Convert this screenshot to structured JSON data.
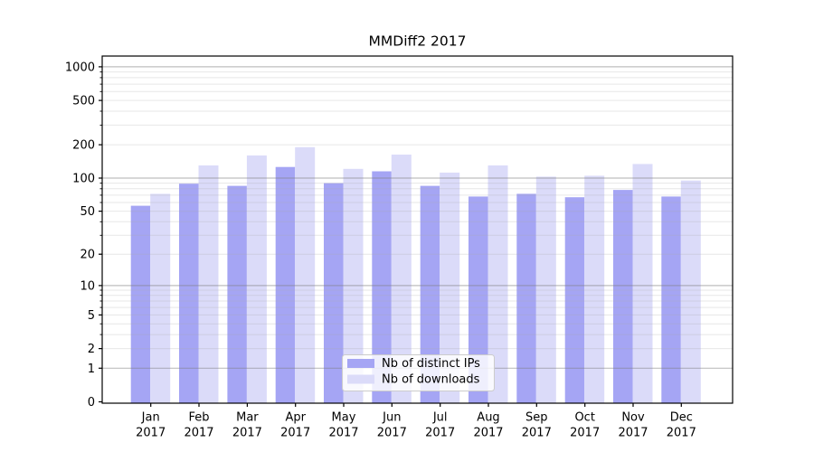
{
  "chart_data": {
    "type": "bar",
    "title": "MMDiff2 2017",
    "categories": [
      "Jan",
      "Feb",
      "Mar",
      "Apr",
      "May",
      "Jun",
      "Jul",
      "Aug",
      "Sep",
      "Oct",
      "Nov",
      "Dec"
    ],
    "category_year": "2017",
    "series": [
      {
        "name": "Nb of distinct IPs",
        "color": "#a5a5f4",
        "values": [
          56,
          89,
          85,
          126,
          90,
          115,
          85,
          68,
          72,
          67,
          78,
          68
        ]
      },
      {
        "name": "Nb of downloads",
        "color": "#dbdbf9",
        "values": [
          72,
          130,
          160,
          190,
          121,
          163,
          112,
          130,
          103,
          105,
          134,
          95
        ]
      }
    ],
    "yscale": "log1p",
    "ylim": [
      0,
      1250
    ],
    "yticks": [
      0,
      1,
      2,
      5,
      10,
      20,
      50,
      100,
      200,
      500,
      1000
    ],
    "grid": true,
    "legend_position": "lower center",
    "axis_color": "#000000",
    "major_grid_color": "#808080",
    "minor_grid_color": "#aaaaaa",
    "background_color": "#ffffff"
  }
}
